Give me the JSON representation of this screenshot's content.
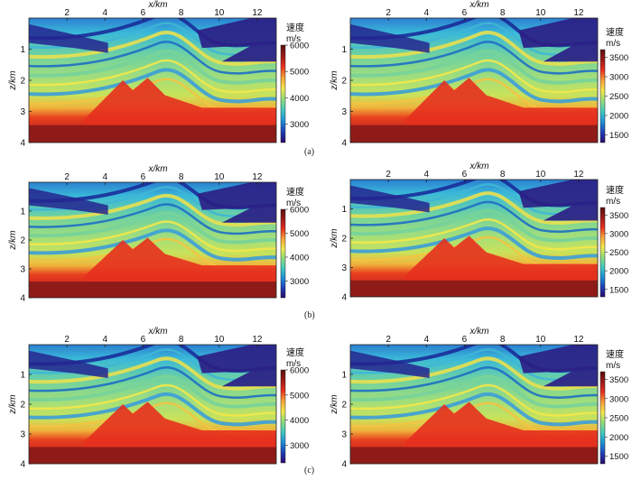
{
  "panels": [
    {
      "row": "a",
      "xlabel": "x/km",
      "ylabel": "z/km",
      "cb_title": "速度",
      "cb_unit": "m/s",
      "cb_ticks": [
        "6000",
        "5000",
        "4000",
        "3000"
      ],
      "cb_range": [
        2300,
        6000
      ],
      "x_ticks": [
        "2",
        "4",
        "6",
        "8",
        "10",
        "12"
      ],
      "y_ticks": [
        "1",
        "2",
        "3",
        "4"
      ]
    },
    {
      "row": "a",
      "xlabel": "x/km",
      "ylabel": "z/km",
      "cb_title": "速度",
      "cb_unit": "m/s",
      "cb_ticks": [
        "3500",
        "3000",
        "2500",
        "2000",
        "1500"
      ],
      "cb_range": [
        1300,
        3700
      ],
      "x_ticks": [
        "2",
        "4",
        "6",
        "8",
        "10",
        "12"
      ],
      "y_ticks": [
        "1",
        "2",
        "3",
        "4"
      ]
    },
    {
      "row": "b",
      "xlabel": "x/km",
      "ylabel": "z/km",
      "cb_title": "速度",
      "cb_unit": "m/s",
      "cb_ticks": [
        "6000",
        "5000",
        "4000",
        "3000"
      ],
      "cb_range": [
        2300,
        6000
      ],
      "x_ticks": [
        "2",
        "4",
        "6",
        "8",
        "10",
        "12"
      ],
      "y_ticks": [
        "1",
        "2",
        "3",
        "4"
      ]
    },
    {
      "row": "b",
      "xlabel": "x/km",
      "ylabel": "z/km",
      "cb_title": "速度",
      "cb_unit": "m/s",
      "cb_ticks": [
        "3500",
        "3000",
        "2500",
        "2000",
        "1500"
      ],
      "cb_range": [
        1300,
        3700
      ],
      "x_ticks": [
        "2",
        "4",
        "6",
        "8",
        "10",
        "12"
      ],
      "y_ticks": [
        "1",
        "2",
        "3",
        "4"
      ]
    },
    {
      "row": "c",
      "xlabel": "x/km",
      "ylabel": "z/km",
      "cb_title": "速度",
      "cb_unit": "m/s",
      "cb_ticks": [
        "6000",
        "5000",
        "4000",
        "3000"
      ],
      "cb_range": [
        2300,
        6000
      ],
      "x_ticks": [
        "2",
        "4",
        "6",
        "8",
        "10",
        "12"
      ],
      "y_ticks": [
        "1",
        "2",
        "3",
        "4"
      ]
    },
    {
      "row": "c",
      "xlabel": "x/km",
      "ylabel": "z/km",
      "cb_title": "速度",
      "cb_unit": "m/s",
      "cb_ticks": [
        "3500",
        "3000",
        "2500",
        "2000",
        "1500"
      ],
      "cb_range": [
        1300,
        3700
      ],
      "x_ticks": [
        "2",
        "4",
        "6",
        "8",
        "10",
        "12"
      ],
      "y_ticks": [
        "1",
        "2",
        "3",
        "4"
      ]
    }
  ],
  "captions": {
    "a": "(a)",
    "b": "(b)",
    "c": "(c)"
  },
  "colormap": [
    "#2a0a6e",
    "#1f3fb8",
    "#1e8fd6",
    "#3fc9c0",
    "#8fdc7a",
    "#f3e84a",
    "#f6a23a",
    "#e8301f",
    "#9c1a1a",
    "#5a1010"
  ]
}
